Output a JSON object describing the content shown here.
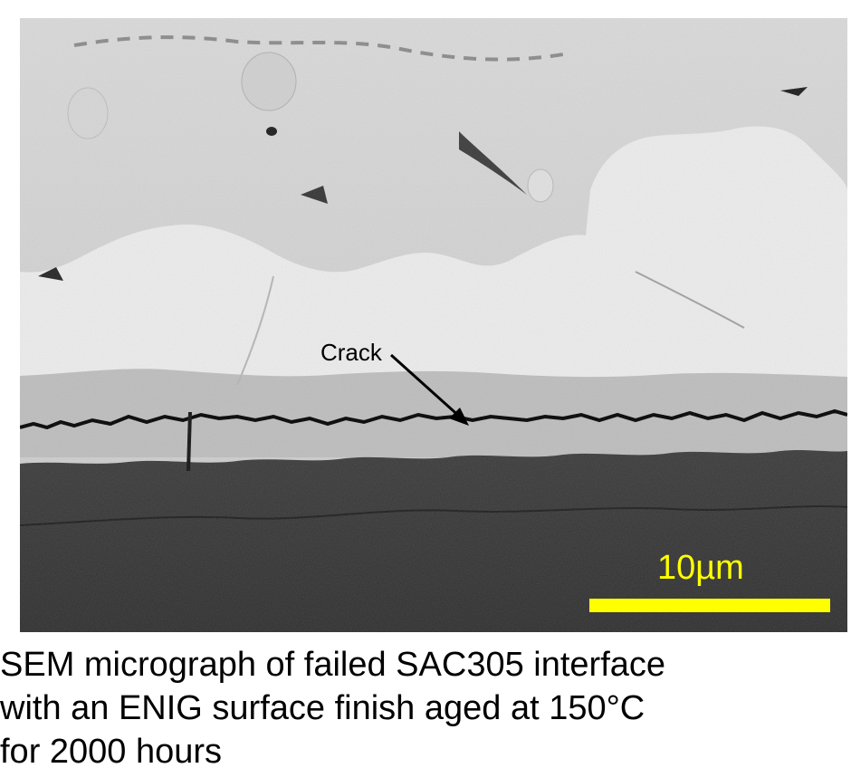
{
  "image": {
    "annotations": {
      "crack_label": "Crack",
      "scale_label": "10µm"
    },
    "colors": {
      "scale_bar": "#ffff00",
      "crack": "#000000"
    }
  },
  "caption": {
    "line1": "SEM micrograph of failed SAC305 interface",
    "line2": "with an ENIG surface finish aged at 150°C",
    "line3": "for 2000 hours"
  }
}
